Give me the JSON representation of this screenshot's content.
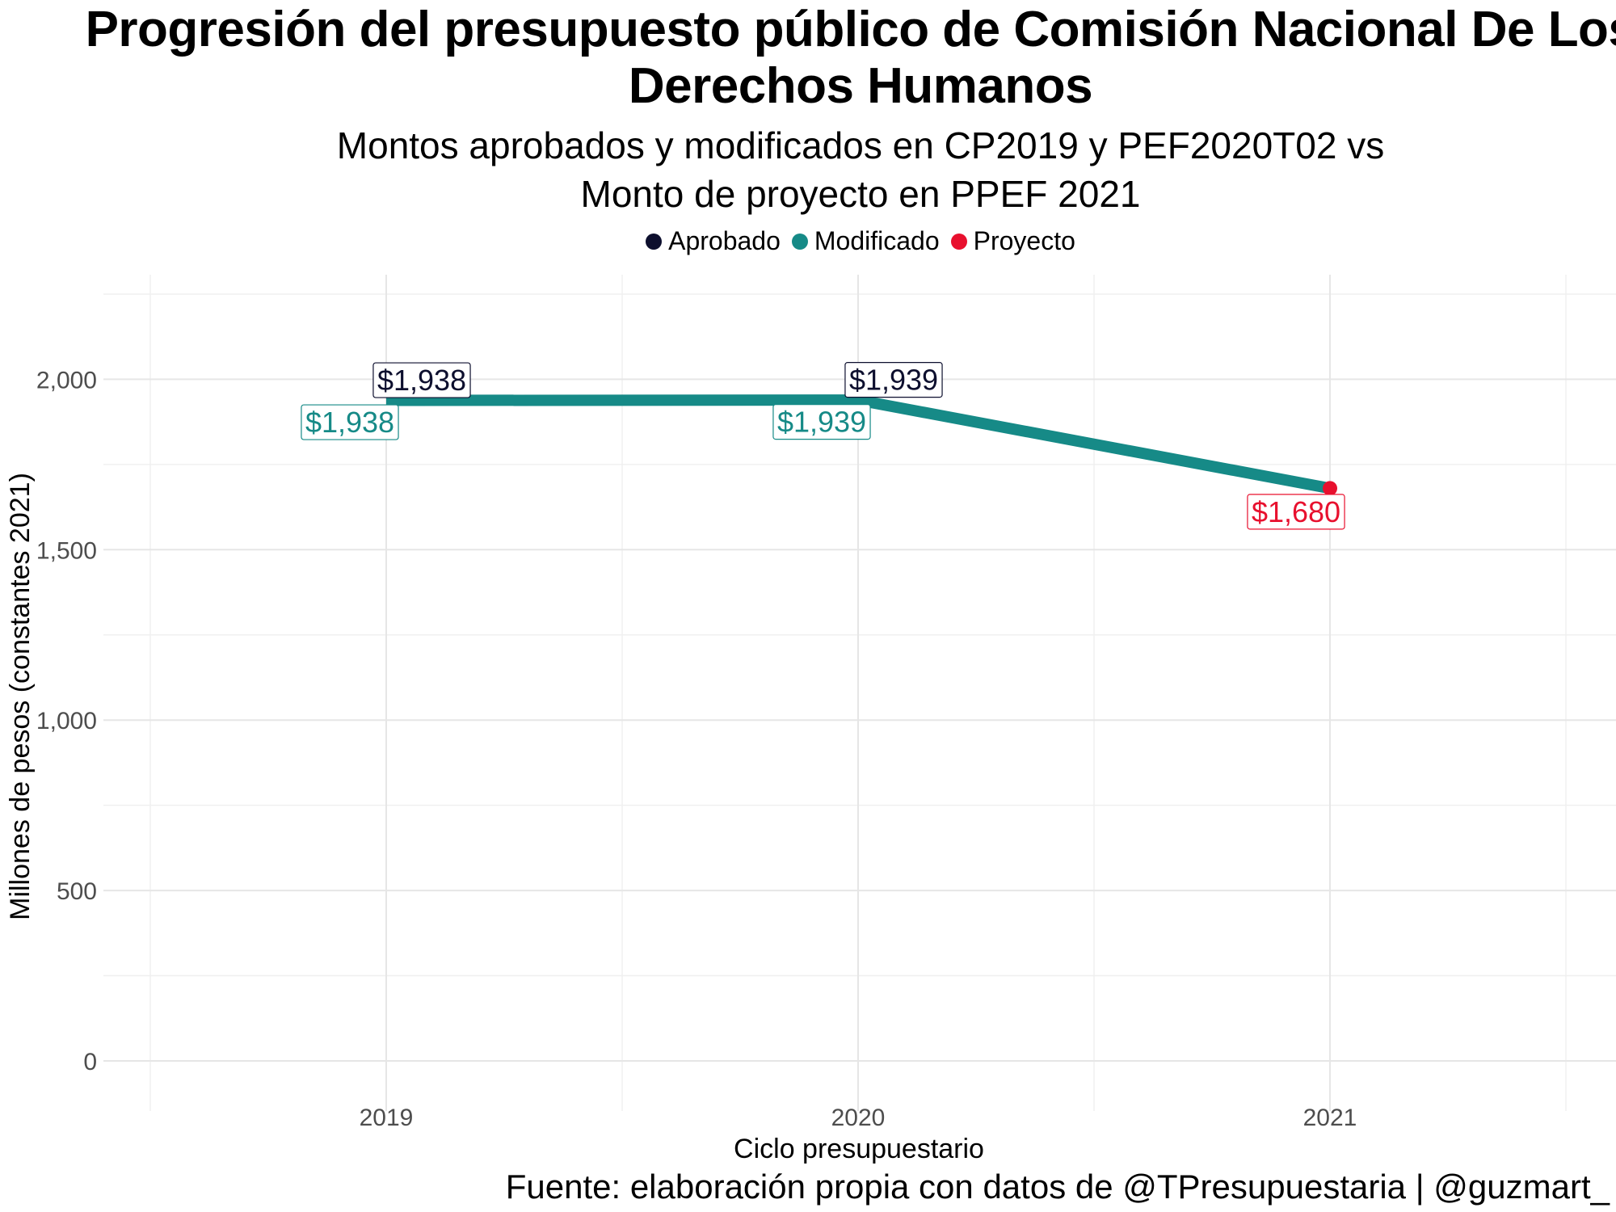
{
  "title": "Progresión del presupuesto público de Comisión Nacional De Los Derechos Humanos",
  "title_line1": "Progresión del presupuesto público de Comisión Nacional De Los",
  "title_line2": "Derechos Humanos",
  "subtitle_line1": "Montos aprobados y modificados en CP2019 y PEF2020T02 vs",
  "subtitle_line2": "Monto de proyecto en PPEF 2021",
  "caption": "Fuente: elaboración propia con datos de @TPresupuestaria | @guzmart_",
  "legend": [
    {
      "label": "Aprobado",
      "color": "#0d0f2e"
    },
    {
      "label": "Modificado",
      "color": "#168a87"
    },
    {
      "label": "Proyecto",
      "color": "#e8102e"
    }
  ],
  "chart_data": {
    "type": "line",
    "xlabel": "Ciclo presupuestario",
    "ylabel": "Millones de pesos (constantes 2021)",
    "categories": [
      "2019",
      "2020",
      "2021"
    ],
    "ylim": [
      0,
      2250
    ],
    "yticks": [
      0,
      500,
      1000,
      1500,
      2000
    ],
    "ytick_labels": [
      "0",
      "500",
      "1,000",
      "1,500",
      "2,000"
    ],
    "grid": true,
    "legend_position": "top",
    "series": [
      {
        "name": "Aprobado",
        "color": "#0d0f2e",
        "x": [
          "2019",
          "2020"
        ],
        "values": [
          1938,
          1939
        ],
        "labels": [
          "$1,938",
          "$1,939"
        ]
      },
      {
        "name": "Modificado",
        "color": "#168a87",
        "x": [
          "2019",
          "2020"
        ],
        "values": [
          1938,
          1939
        ],
        "labels": [
          "$1,938",
          "$1,939"
        ]
      },
      {
        "name": "Proyecto",
        "color": "#e8102e",
        "x": [
          "2021"
        ],
        "values": [
          1680
        ],
        "labels": [
          "$1,680"
        ]
      }
    ]
  }
}
